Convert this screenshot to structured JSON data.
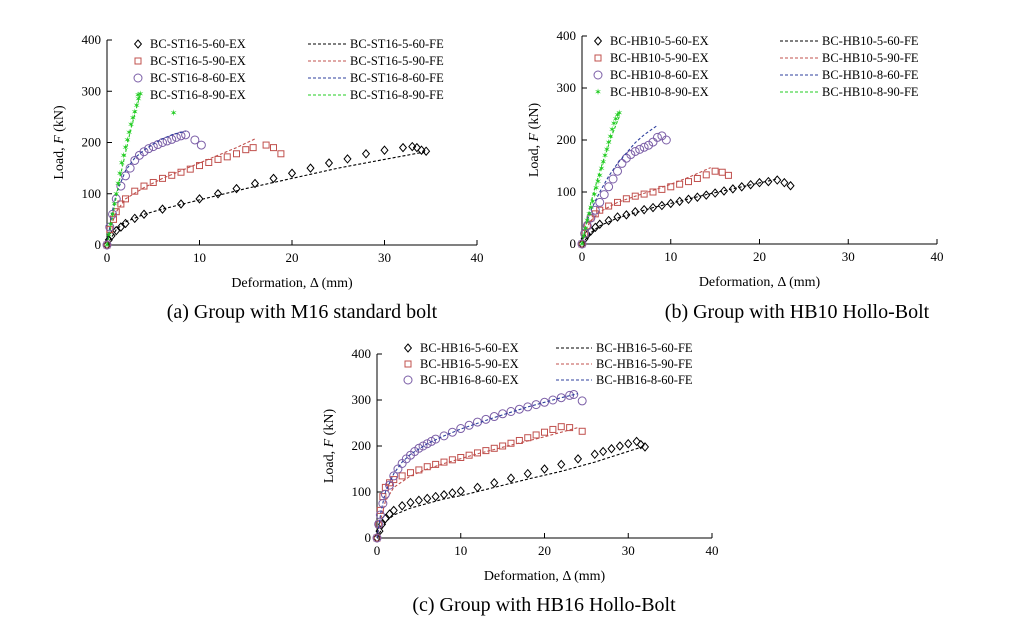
{
  "figure": {
    "captions": [
      "(a) Group with M16 standard bolt",
      "(b) Group with HB10 Hollo-Bolt",
      "(c) Group with HB16 Hollo-Bolt"
    ]
  },
  "chart_data": [
    {
      "id": "a",
      "type": "scatter",
      "title": "(a) Group with M16 standard bolt",
      "xlabel": "Deformation, Δ (mm)",
      "ylabel_parts": [
        "Load, ",
        "F",
        " (kN)"
      ],
      "xlim": [
        0,
        40
      ],
      "ylim": [
        0,
        400
      ],
      "xticks": [
        0,
        10,
        20,
        30,
        40
      ],
      "yticks": [
        0,
        100,
        200,
        300,
        400
      ],
      "grid": false,
      "legend_position": "top",
      "series": [
        {
          "name": "BC-ST16-5-60-EX",
          "kind": "EX",
          "marker": "diamond",
          "color": "#000000",
          "x": [
            0,
            0.2,
            0.5,
            1,
            1.5,
            2,
            3,
            4,
            6,
            8,
            10,
            12,
            14,
            16,
            18,
            20,
            22,
            24,
            26,
            28,
            30,
            32,
            33,
            33.5,
            34,
            34.5
          ],
          "y": [
            0,
            10,
            18,
            28,
            35,
            42,
            52,
            60,
            70,
            80,
            90,
            100,
            110,
            120,
            130,
            140,
            150,
            160,
            168,
            178,
            185,
            190,
            192,
            190,
            185,
            183
          ]
        },
        {
          "name": "BC-ST16-5-60-FE",
          "kind": "FE",
          "color": "#000000",
          "x": [
            0,
            1,
            2,
            4,
            6,
            10,
            15,
            20,
            25,
            30,
            34.5
          ],
          "y": [
            0,
            30,
            45,
            60,
            70,
            88,
            110,
            130,
            150,
            167,
            182
          ]
        },
        {
          "name": "BC-ST16-5-90-EX",
          "kind": "EX",
          "marker": "square",
          "color": "#c0504d",
          "x": [
            0,
            0.3,
            0.7,
            1,
            1.5,
            2,
            3,
            4,
            5,
            6,
            7,
            8,
            9,
            10,
            11,
            12,
            13,
            14,
            15,
            15.8,
            17.2,
            18,
            18.8
          ],
          "y": [
            0,
            30,
            50,
            65,
            80,
            90,
            105,
            115,
            122,
            130,
            136,
            142,
            148,
            155,
            161,
            167,
            172,
            178,
            186,
            190,
            195,
            190,
            178
          ]
        },
        {
          "name": "BC-ST16-5-90-FE",
          "kind": "FE",
          "color": "#c0504d",
          "x": [
            0,
            0.5,
            1,
            2,
            4,
            6,
            8,
            10,
            12,
            14,
            16
          ],
          "y": [
            0,
            40,
            65,
            90,
            112,
            130,
            145,
            160,
            175,
            190,
            207
          ]
        },
        {
          "name": "BC-ST16-8-60-EX",
          "kind": "EX",
          "marker": "circle",
          "color": "#7b5ea7",
          "x": [
            0,
            0.3,
            0.6,
            1,
            1.5,
            2,
            2.5,
            3,
            3.5,
            4,
            4.5,
            5,
            5.5,
            6,
            6.5,
            7,
            7.5,
            8,
            8.5,
            9.5,
            10.2
          ],
          "y": [
            0,
            35,
            60,
            90,
            115,
            135,
            150,
            165,
            175,
            182,
            188,
            192,
            196,
            200,
            203,
            206,
            210,
            213,
            215,
            205,
            195
          ]
        },
        {
          "name": "BC-ST16-8-60-FE",
          "kind": "FE",
          "color": "#2e3f9e",
          "x": [
            0,
            0.5,
            1,
            2,
            3,
            4,
            5,
            6,
            7,
            8.5
          ],
          "y": [
            0,
            60,
            100,
            145,
            170,
            185,
            197,
            207,
            215,
            222
          ]
        },
        {
          "name": "BC-ST16-8-90-EX",
          "kind": "EX",
          "marker": "star",
          "color": "#22cc22",
          "x": [
            0,
            0.2,
            0.4,
            0.6,
            0.8,
            1,
            1.2,
            1.4,
            1.6,
            1.8,
            2,
            2.2,
            2.4,
            2.6,
            2.8,
            3,
            3.2,
            3.4,
            3.6,
            7.2
          ],
          "y": [
            0,
            20,
            40,
            60,
            80,
            100,
            120,
            140,
            160,
            175,
            190,
            205,
            220,
            235,
            248,
            260,
            272,
            285,
            295,
            258
          ]
        },
        {
          "name": "BC-ST16-8-90-FE",
          "kind": "FE",
          "color": "#22cc22",
          "x": [
            0,
            0.5,
            1,
            1.5,
            2,
            2.5,
            3,
            3.6
          ],
          "y": [
            0,
            45,
            95,
            140,
            180,
            220,
            255,
            295
          ]
        }
      ]
    },
    {
      "id": "b",
      "type": "scatter",
      "title": "(b) Group with HB10 Hollo-Bolt",
      "xlabel": "Deformation, Δ (mm)",
      "ylabel_parts": [
        "Load, ",
        "F",
        " (kN)"
      ],
      "xlim": [
        0,
        40
      ],
      "ylim": [
        0,
        400
      ],
      "xticks": [
        0,
        10,
        20,
        30,
        40
      ],
      "yticks": [
        0,
        100,
        200,
        300,
        400
      ],
      "grid": false,
      "legend_position": "top",
      "series": [
        {
          "name": "BC-HB10-5-60-EX",
          "kind": "EX",
          "marker": "diamond",
          "color": "#000000",
          "x": [
            0,
            0.3,
            0.6,
            1,
            1.5,
            2,
            3,
            4,
            5,
            6,
            7,
            8,
            9,
            10,
            11,
            12,
            13,
            14,
            15,
            16,
            17,
            18,
            19,
            20,
            21,
            22,
            22.8,
            23.5
          ],
          "y": [
            0,
            10,
            18,
            25,
            32,
            38,
            45,
            52,
            56,
            62,
            66,
            70,
            74,
            78,
            82,
            86,
            90,
            94,
            98,
            102,
            106,
            110,
            114,
            118,
            120,
            123,
            118,
            112
          ]
        },
        {
          "name": "BC-HB10-5-60-FE",
          "kind": "FE",
          "color": "#000000",
          "x": [
            0,
            1,
            2,
            4,
            6,
            8,
            10,
            14,
            18,
            22
          ],
          "y": [
            0,
            22,
            35,
            50,
            60,
            70,
            78,
            95,
            110,
            125
          ]
        },
        {
          "name": "BC-HB10-5-90-EX",
          "kind": "EX",
          "marker": "square",
          "color": "#c0504d",
          "x": [
            0,
            0.3,
            0.6,
            1,
            1.5,
            2,
            3,
            4,
            5,
            6,
            7,
            8,
            9,
            10,
            11,
            12,
            13,
            14,
            15,
            15.8,
            16.5
          ],
          "y": [
            0,
            20,
            35,
            50,
            58,
            65,
            73,
            80,
            87,
            92,
            96,
            100,
            105,
            110,
            115,
            120,
            126,
            133,
            140,
            138,
            132
          ]
        },
        {
          "name": "BC-HB10-5-90-FE",
          "kind": "FE",
          "color": "#c0504d",
          "x": [
            0,
            0.5,
            1,
            2,
            4,
            6,
            8,
            10,
            12,
            14.5
          ],
          "y": [
            0,
            30,
            45,
            62,
            80,
            92,
            103,
            115,
            128,
            147
          ]
        },
        {
          "name": "BC-HB10-8-60-EX",
          "kind": "EX",
          "marker": "circle",
          "color": "#7b5ea7",
          "x": [
            0,
            0.3,
            0.6,
            1,
            1.5,
            2,
            2.5,
            3,
            3.5,
            4,
            4.5,
            5,
            5.5,
            6,
            6.5,
            7,
            7.5,
            8,
            8.5,
            9,
            9.5
          ],
          "y": [
            0,
            20,
            35,
            50,
            65,
            80,
            95,
            110,
            125,
            140,
            155,
            165,
            172,
            178,
            182,
            186,
            190,
            196,
            205,
            208,
            200
          ]
        },
        {
          "name": "BC-HB10-8-60-FE",
          "kind": "FE",
          "color": "#2e3f9e",
          "x": [
            0,
            0.5,
            1,
            2,
            3,
            4,
            5,
            6,
            7,
            8.5
          ],
          "y": [
            0,
            40,
            65,
            100,
            130,
            155,
            175,
            195,
            210,
            228
          ]
        },
        {
          "name": "BC-HB10-8-90-EX",
          "kind": "EX",
          "marker": "star",
          "color": "#22cc22",
          "x": [
            0,
            0.2,
            0.4,
            0.6,
            0.8,
            1,
            1.2,
            1.4,
            1.6,
            1.8,
            2,
            2.2,
            2.4,
            2.6,
            2.8,
            3,
            3.2,
            3.4,
            3.6,
            3.8,
            4,
            4.2
          ],
          "y": [
            0,
            15,
            30,
            45,
            58,
            70,
            82,
            95,
            108,
            120,
            132,
            145,
            158,
            170,
            182,
            195,
            207,
            220,
            232,
            240,
            248,
            252
          ]
        },
        {
          "name": "BC-HB10-8-90-FE",
          "kind": "FE",
          "color": "#22cc22",
          "x": [
            0,
            0.5,
            1,
            1.5,
            2,
            2.5,
            3,
            3.5,
            4.2
          ],
          "y": [
            0,
            40,
            80,
            110,
            140,
            165,
            190,
            215,
            245
          ]
        }
      ]
    },
    {
      "id": "c",
      "type": "scatter",
      "title": "(c) Group with HB16 Hollo-Bolt",
      "xlabel": "Deformation, Δ (mm)",
      "ylabel_parts": [
        "Load, ",
        "F",
        " (kN)"
      ],
      "xlim": [
        0,
        40
      ],
      "ylim": [
        0,
        400
      ],
      "xticks": [
        0,
        10,
        20,
        30,
        40
      ],
      "yticks": [
        0,
        100,
        200,
        300,
        400
      ],
      "grid": false,
      "legend_position": "top",
      "series": [
        {
          "name": "BC-HB16-5-60-EX",
          "kind": "EX",
          "marker": "diamond",
          "color": "#000000",
          "x": [
            0,
            0.3,
            0.6,
            1,
            1.5,
            2,
            3,
            4,
            5,
            6,
            7,
            8,
            9,
            10,
            12,
            14,
            16,
            18,
            20,
            22,
            24,
            26,
            27,
            28,
            29,
            30,
            31,
            31.5,
            32
          ],
          "y": [
            0,
            15,
            30,
            42,
            52,
            60,
            70,
            77,
            82,
            86,
            90,
            94,
            98,
            102,
            110,
            120,
            130,
            140,
            150,
            160,
            172,
            182,
            188,
            194,
            200,
            205,
            210,
            203,
            198
          ]
        },
        {
          "name": "BC-HB16-5-60-FE",
          "kind": "FE",
          "color": "#000000",
          "x": [
            0,
            1,
            2,
            4,
            6,
            8,
            10,
            14,
            18,
            22,
            26,
            32
          ],
          "y": [
            0,
            35,
            50,
            65,
            75,
            85,
            92,
            110,
            128,
            145,
            165,
            200
          ]
        },
        {
          "name": "BC-HB16-5-90-EX",
          "kind": "EX",
          "marker": "square",
          "color": "#c0504d",
          "x": [
            0,
            0.2,
            0.4,
            0.7,
            1,
            1.5,
            2,
            3,
            4,
            5,
            6,
            7,
            8,
            9,
            10,
            11,
            12,
            13,
            14,
            15,
            16,
            17,
            18,
            19,
            20,
            21,
            22,
            23,
            24.5
          ],
          "y": [
            0,
            30,
            60,
            90,
            110,
            120,
            127,
            135,
            142,
            148,
            155,
            160,
            165,
            170,
            175,
            180,
            185,
            190,
            195,
            200,
            206,
            212,
            218,
            224,
            230,
            236,
            242,
            240,
            232
          ]
        },
        {
          "name": "BC-HB16-5-90-FE",
          "kind": "FE",
          "color": "#c0504d",
          "x": [
            0,
            0.5,
            1,
            2,
            4,
            6,
            8,
            12,
            16,
            20,
            24
          ],
          "y": [
            0,
            45,
            80,
            110,
            135,
            150,
            162,
            183,
            202,
            220,
            240
          ]
        },
        {
          "name": "BC-HB16-8-60-EX",
          "kind": "EX",
          "marker": "circle",
          "color": "#7b5ea7",
          "x": [
            0,
            0.2,
            0.4,
            0.7,
            1,
            1.5,
            2,
            2.5,
            3,
            3.5,
            4,
            4.5,
            5,
            5.5,
            6,
            6.5,
            7,
            8,
            9,
            10,
            11,
            12,
            13,
            14,
            15,
            16,
            17,
            18,
            19,
            20,
            21,
            22,
            23,
            23.5,
            24.5
          ],
          "y": [
            0,
            30,
            50,
            75,
            95,
            115,
            135,
            150,
            162,
            172,
            180,
            188,
            195,
            200,
            205,
            210,
            215,
            222,
            230,
            238,
            245,
            252,
            258,
            264,
            270,
            275,
            280,
            285,
            290,
            295,
            300,
            305,
            310,
            312,
            298
          ]
        },
        {
          "name": "BC-HB16-8-60-FE",
          "kind": "FE",
          "color": "#2e3f9e",
          "x": [
            0,
            0.5,
            1,
            2,
            3,
            4,
            6,
            8,
            10,
            14,
            18,
            22,
            24
          ],
          "y": [
            0,
            60,
            100,
            140,
            165,
            182,
            205,
            222,
            237,
            262,
            285,
            305,
            314
          ]
        }
      ]
    }
  ]
}
